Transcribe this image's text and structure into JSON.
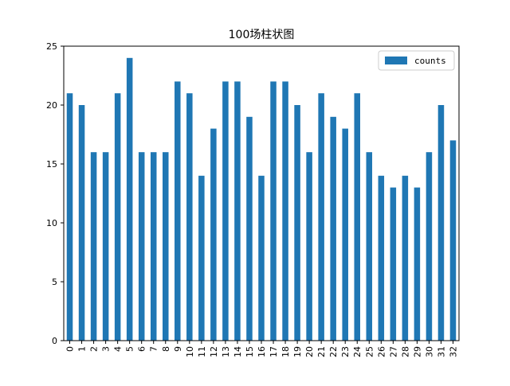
{
  "chart_data": {
    "type": "bar",
    "title": "100场柱状图",
    "xlabel": "",
    "ylabel": "",
    "categories": [
      "0",
      "1",
      "2",
      "3",
      "4",
      "5",
      "6",
      "7",
      "8",
      "9",
      "10",
      "11",
      "12",
      "13",
      "14",
      "15",
      "16",
      "17",
      "18",
      "19",
      "20",
      "21",
      "22",
      "23",
      "24",
      "25",
      "26",
      "27",
      "28",
      "29",
      "30",
      "31",
      "32"
    ],
    "series": [
      {
        "name": "counts",
        "color": "#1f77b4",
        "values": [
          21,
          20,
          16,
          16,
          21,
          24,
          16,
          16,
          16,
          22,
          21,
          14,
          18,
          22,
          22,
          19,
          14,
          22,
          22,
          20,
          16,
          21,
          19,
          18,
          21,
          16,
          14,
          13,
          14,
          13,
          16,
          20,
          17
        ]
      }
    ],
    "ylim": [
      0,
      25
    ],
    "yticks": [
      "0",
      "5",
      "10",
      "15",
      "20",
      "25"
    ],
    "grid": false,
    "legend_position": "upper right"
  }
}
